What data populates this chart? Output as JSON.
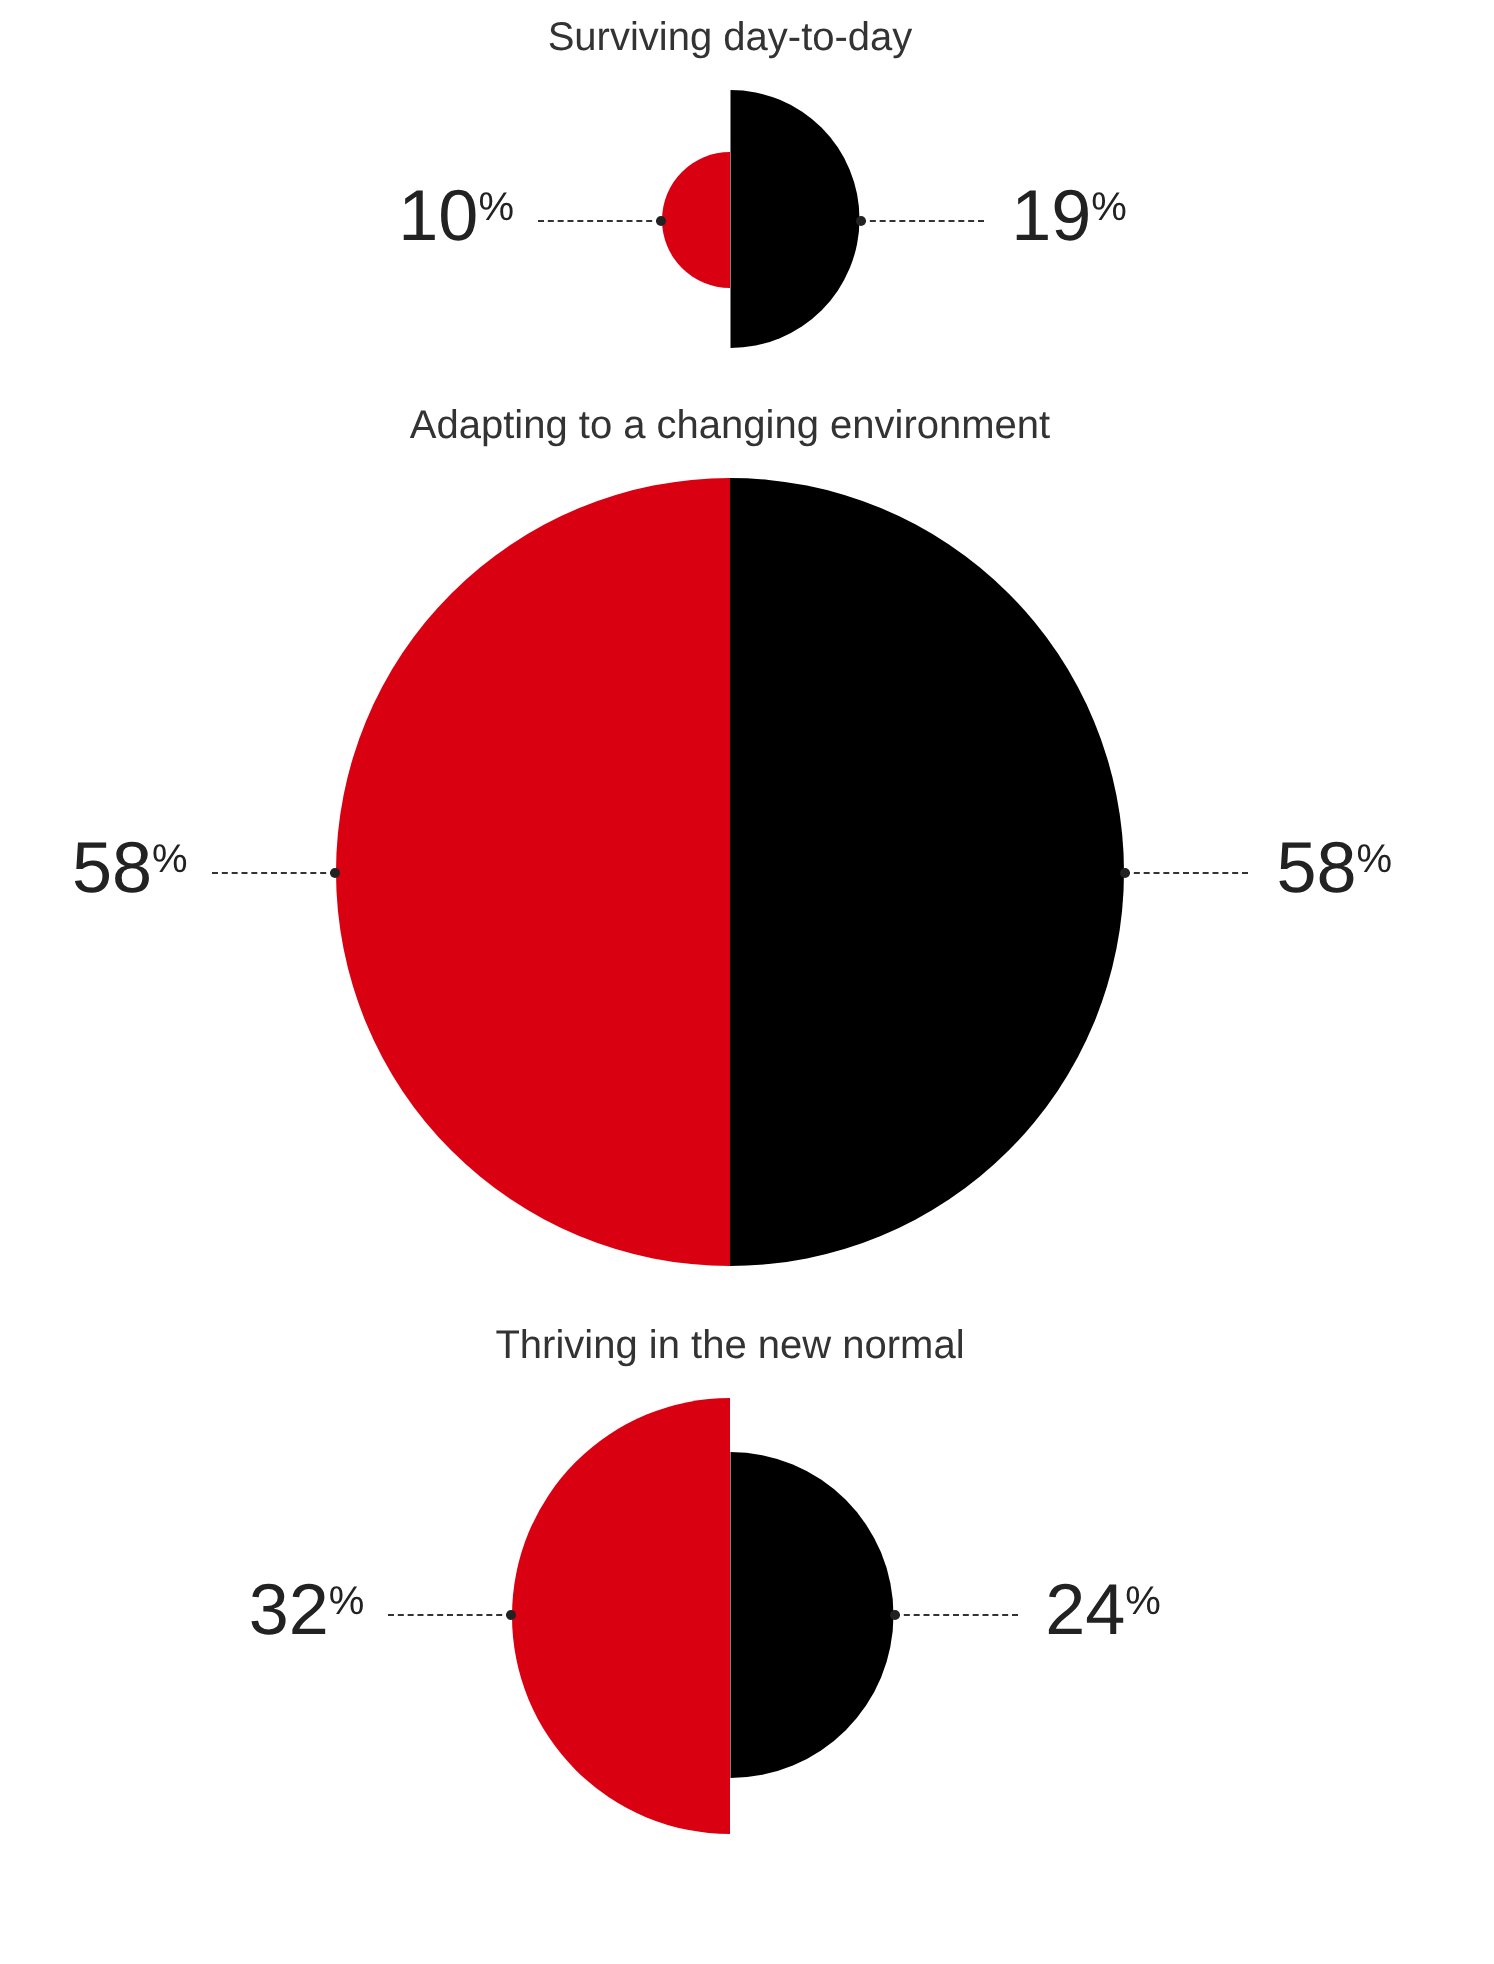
{
  "chart_data": {
    "type": "other",
    "categories": [
      "Surviving day-to-day",
      "Adapting to a changing environment",
      "Thriving in the new normal"
    ],
    "series": [
      {
        "color": "#d90012",
        "values": [
          10,
          58,
          32
        ],
        "value_labels": [
          "10$^{%}$",
          "58$^{%}$",
          "32$^{%}$"
        ]
      },
      {
        "color": "#000000",
        "values": [
          19,
          58,
          24
        ],
        "value_labels": [
          "19$^{%}$",
          "58$^{%}$",
          "24$^{%}$"
        ]
      }
    ]
  }
}
